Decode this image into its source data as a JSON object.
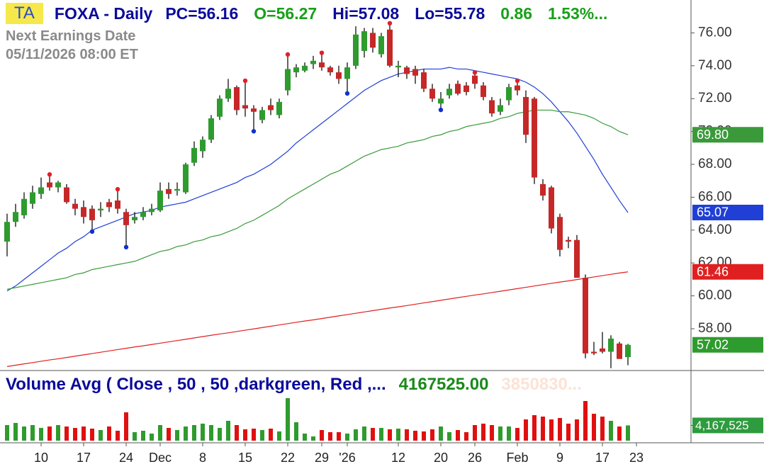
{
  "chart_data": {
    "type": "candlestick",
    "badge": "TA",
    "title": "FOXA - Daily",
    "header": [
      {
        "text": "PC=56.16",
        "color": "#0a0a9a"
      },
      {
        "text": "O=56.27",
        "color": "#18a018"
      },
      {
        "text": "Hi=57.08",
        "color": "#0a0a9a"
      },
      {
        "text": "Lo=55.78",
        "color": "#0a0a9a"
      },
      {
        "text": "0.86",
        "color": "#18a018"
      },
      {
        "text": "1.53%...",
        "color": "#18a018"
      }
    ],
    "notes": [
      "Next Earnings Date",
      "05/11/2026   08:00 ET"
    ],
    "categories": [
      null,
      null,
      null,
      null,
      "10",
      null,
      null,
      null,
      null,
      "17",
      null,
      null,
      null,
      null,
      "24",
      null,
      null,
      null,
      "Dec",
      null,
      null,
      null,
      null,
      "8",
      null,
      null,
      null,
      null,
      "15",
      null,
      null,
      null,
      null,
      "22",
      null,
      null,
      null,
      "29",
      null,
      null,
      "'26",
      null,
      null,
      null,
      null,
      null,
      "12",
      null,
      null,
      null,
      null,
      "20",
      null,
      null,
      null,
      "26",
      null,
      null,
      null,
      null,
      "Feb",
      null,
      null,
      null,
      null,
      "9",
      null,
      null,
      null,
      null,
      "17",
      null,
      null,
      null,
      "23"
    ],
    "open": [
      63.3,
      64.5,
      64.9,
      65.6,
      66.2,
      66.9,
      66.6,
      66.6,
      65.6,
      65.4,
      65.3,
      65.2,
      65.7,
      65.8,
      65.1,
      64.6,
      64.8,
      65.1,
      65.2,
      66.5,
      66.4,
      66.3,
      68.1,
      68.8,
      69.5,
      70.9,
      72.0,
      72.7,
      71.6,
      71.4,
      70.7,
      71.6,
      71.0,
      72.5,
      73.6,
      73.7,
      74.1,
      74.2,
      73.9,
      73.6,
      73.2,
      74.0,
      74.9,
      76.0,
      74.7,
      76.2,
      73.9,
      73.9,
      73.8,
      73.6,
      72.6,
      71.7,
      72.2,
      72.9,
      72.8,
      73.4,
      72.8,
      71.9,
      71.2,
      71.9,
      72.8,
      72.1,
      72.0,
      66.8,
      66.6,
      64.8,
      63.4,
      63.4,
      61.1,
      56.6,
      56.8,
      56.6,
      57.1,
      56.27,
      null
    ],
    "high": [
      65.0,
      65.6,
      66.3,
      66.7,
      67.2,
      67.3,
      67.0,
      66.8,
      65.9,
      65.8,
      65.5,
      65.7,
      65.9,
      66.4,
      65.3,
      65.1,
      65.4,
      65.6,
      66.9,
      66.9,
      66.9,
      68.1,
      69.4,
      69.7,
      71.0,
      72.2,
      73.2,
      72.8,
      73.0,
      71.6,
      71.5,
      72.0,
      72.0,
      74.6,
      74.1,
      74.2,
      74.6,
      74.7,
      74.0,
      74.0,
      74.2,
      76.4,
      76.3,
      76.3,
      76.0,
      76.5,
      74.3,
      74.0,
      74.0,
      73.8,
      72.9,
      72.4,
      72.9,
      73.1,
      73.0,
      73.5,
      73.0,
      72.1,
      72.0,
      72.9,
      73.0,
      72.5,
      72.1,
      67.1,
      66.7,
      65.0,
      63.6,
      63.7,
      61.3,
      57.2,
      57.8,
      57.6,
      57.2,
      57.08,
      null
    ],
    "low": [
      62.4,
      64.2,
      64.7,
      65.3,
      65.9,
      66.4,
      66.3,
      65.6,
      64.9,
      64.4,
      64.0,
      64.8,
      65.1,
      65.0,
      63.05,
      64.4,
      64.6,
      64.9,
      65.1,
      65.9,
      66.1,
      66.2,
      67.9,
      68.4,
      69.3,
      70.7,
      71.8,
      71.0,
      70.9,
      70.1,
      70.5,
      71.0,
      70.8,
      72.2,
      73.3,
      73.6,
      73.8,
      73.7,
      73.4,
      72.9,
      72.4,
      73.8,
      74.5,
      74.8,
      74.5,
      73.9,
      73.3,
      73.2,
      72.9,
      72.4,
      71.8,
      71.4,
      72.0,
      72.2,
      72.2,
      72.6,
      71.9,
      70.9,
      71.0,
      71.6,
      72.2,
      69.3,
      66.8,
      65.8,
      63.8,
      62.4,
      62.9,
      61.1,
      56.2,
      56.4,
      56.5,
      55.6,
      56.2,
      55.78,
      null
    ],
    "close": [
      64.5,
      65.1,
      65.9,
      66.3,
      66.6,
      66.6,
      66.9,
      65.7,
      65.3,
      64.8,
      64.6,
      65.3,
      65.4,
      65.3,
      64.3,
      64.8,
      65.1,
      65.3,
      66.4,
      66.2,
      66.5,
      68.0,
      69.0,
      69.5,
      70.8,
      72.0,
      72.6,
      71.3,
      71.4,
      71.2,
      71.3,
      71.3,
      71.8,
      73.8,
      73.9,
      74.0,
      74.3,
      73.9,
      73.6,
      73.2,
      73.9,
      75.9,
      76.1,
      75.1,
      75.8,
      74.0,
      74.0,
      73.5,
      73.4,
      72.6,
      72.0,
      72.0,
      72.6,
      72.3,
      72.4,
      72.9,
      72.1,
      71.1,
      71.6,
      72.7,
      72.5,
      69.8,
      67.2,
      66.1,
      64.1,
      62.8,
      63.3,
      61.1,
      56.5,
      56.5,
      56.6,
      57.4,
      56.16,
      57.02,
      null
    ],
    "close_label": "57.02",
    "up_color": "#2e9b2e",
    "down_color": "#c62828",
    "high_markers": [
      null,
      null,
      null,
      null,
      null,
      67.3,
      null,
      null,
      null,
      null,
      null,
      null,
      null,
      66.4,
      null,
      null,
      null,
      null,
      null,
      null,
      null,
      null,
      null,
      null,
      null,
      null,
      null,
      null,
      73.0,
      null,
      null,
      null,
      null,
      74.6,
      null,
      null,
      null,
      74.7,
      null,
      null,
      null,
      null,
      null,
      null,
      null,
      76.5,
      null,
      null,
      null,
      null,
      null,
      null,
      null,
      null,
      null,
      73.5,
      null,
      null,
      null,
      null,
      73.0,
      null,
      null,
      null,
      null,
      null,
      null,
      null,
      null,
      null,
      null,
      null,
      null,
      null,
      null
    ],
    "low_markers": [
      null,
      null,
      null,
      null,
      null,
      null,
      null,
      null,
      null,
      null,
      64.0,
      null,
      null,
      null,
      63.05,
      null,
      null,
      null,
      null,
      null,
      null,
      null,
      null,
      null,
      null,
      null,
      null,
      null,
      null,
      70.1,
      null,
      null,
      null,
      null,
      null,
      null,
      null,
      null,
      null,
      null,
      72.4,
      null,
      null,
      null,
      null,
      null,
      null,
      null,
      null,
      null,
      null,
      71.4,
      null,
      null,
      null,
      null,
      null,
      null,
      null,
      null,
      null,
      null,
      null,
      null,
      null,
      null,
      null,
      null,
      null,
      null,
      null,
      null,
      null,
      null,
      null
    ],
    "overlays": [
      {
        "color": "#1f3fd6",
        "last_label": "65.07",
        "values": [
          60.3,
          60.6,
          61.0,
          61.4,
          61.8,
          62.2,
          62.6,
          62.9,
          63.3,
          63.6,
          64.0,
          64.2,
          64.4,
          64.6,
          64.8,
          65.0,
          65.1,
          65.2,
          65.4,
          65.5,
          65.6,
          65.7,
          65.9,
          66.1,
          66.3,
          66.5,
          66.7,
          66.9,
          67.2,
          67.4,
          67.7,
          68.0,
          68.4,
          68.8,
          69.3,
          69.7,
          70.1,
          70.5,
          70.9,
          71.3,
          71.7,
          72.1,
          72.5,
          72.8,
          73.1,
          73.3,
          73.5,
          73.6,
          73.7,
          73.8,
          73.8,
          73.8,
          73.9,
          73.8,
          73.8,
          73.7,
          73.6,
          73.5,
          73.4,
          73.3,
          73.2,
          73.0,
          72.7,
          72.3,
          71.8,
          71.2,
          70.6,
          69.9,
          69.1,
          68.3,
          67.4,
          66.6,
          65.8,
          65.07,
          null
        ]
      },
      {
        "color": "#3a9a3a",
        "last_label": "69.80",
        "values": [
          60.4,
          60.5,
          60.6,
          60.7,
          60.8,
          60.9,
          61.0,
          61.1,
          61.3,
          61.4,
          61.6,
          61.7,
          61.8,
          61.9,
          62.0,
          62.1,
          62.3,
          62.5,
          62.7,
          62.8,
          63.0,
          63.1,
          63.3,
          63.4,
          63.6,
          63.7,
          63.9,
          64.1,
          64.4,
          64.6,
          64.9,
          65.2,
          65.5,
          65.9,
          66.2,
          66.5,
          66.8,
          67.1,
          67.4,
          67.6,
          67.9,
          68.2,
          68.5,
          68.7,
          68.9,
          69.0,
          69.1,
          69.3,
          69.4,
          69.5,
          69.7,
          69.8,
          70.0,
          70.1,
          70.3,
          70.4,
          70.5,
          70.6,
          70.8,
          70.9,
          71.1,
          71.2,
          71.3,
          71.3,
          71.3,
          71.2,
          71.2,
          71.1,
          71.0,
          70.8,
          70.5,
          70.3,
          70.0,
          69.8,
          null
        ]
      },
      {
        "color": "#e02020",
        "last_label": "61.46",
        "values": [
          55.7,
          55.78,
          55.86,
          55.94,
          56.02,
          56.1,
          56.17,
          56.25,
          56.33,
          56.41,
          56.49,
          56.57,
          56.65,
          56.73,
          56.81,
          56.89,
          56.96,
          57.04,
          57.12,
          57.2,
          57.28,
          57.36,
          57.44,
          57.52,
          57.6,
          57.68,
          57.75,
          57.83,
          57.91,
          57.99,
          58.07,
          58.15,
          58.23,
          58.31,
          58.39,
          58.47,
          58.54,
          58.62,
          58.7,
          58.78,
          58.86,
          58.94,
          59.02,
          59.1,
          59.18,
          59.26,
          59.33,
          59.41,
          59.49,
          59.57,
          59.65,
          59.73,
          59.81,
          59.89,
          59.97,
          60.05,
          60.12,
          60.2,
          60.28,
          60.36,
          60.44,
          60.52,
          60.6,
          60.68,
          60.76,
          60.84,
          60.91,
          60.99,
          61.07,
          61.15,
          61.23,
          61.31,
          61.39,
          61.46,
          null
        ]
      }
    ],
    "ylim": [
      55.5,
      78
    ],
    "yticks": [
      {
        "value": 58,
        "label": "58.00"
      },
      {
        "value": 60,
        "label": "60.00"
      },
      {
        "value": 62,
        "label": "62.00"
      },
      {
        "value": 64,
        "label": "64.00"
      },
      {
        "value": 66,
        "label": "66.00"
      },
      {
        "value": 68,
        "label": "68.00"
      },
      {
        "value": 70,
        "label": "70.00"
      },
      {
        "value": 72,
        "label": "72.00"
      },
      {
        "value": 74,
        "label": "74.00"
      },
      {
        "value": 76,
        "label": "76.00"
      }
    ],
    "volume": {
      "title": "Volume Avg ( Close , 50 , 50 ,darkgreen, Red ,...",
      "value_text": "4167525.00",
      "avg_text": "3850830...",
      "values": [
        4260000,
        4840000,
        3870000,
        4260000,
        3480000,
        3870000,
        4260000,
        3870000,
        3480000,
        3870000,
        3290000,
        2900000,
        3870000,
        2710000,
        7740000,
        2320000,
        2710000,
        1940000,
        4260000,
        3480000,
        2900000,
        3870000,
        4260000,
        4650000,
        4260000,
        3480000,
        5420000,
        4260000,
        3100000,
        3290000,
        2900000,
        3290000,
        2520000,
        11610000,
        5030000,
        1940000,
        1160000,
        2900000,
        2320000,
        2320000,
        1940000,
        3100000,
        3870000,
        3480000,
        3480000,
        3100000,
        3290000,
        3100000,
        2710000,
        2520000,
        3100000,
        3870000,
        2320000,
        2900000,
        2320000,
        4260000,
        4650000,
        4260000,
        3870000,
        3870000,
        3480000,
        5810000,
        6970000,
        6580000,
        5810000,
        6190000,
        4650000,
        5810000,
        10840000,
        7350000,
        6580000,
        5420000,
        3870000,
        4167525,
        null
      ],
      "ylim": [
        0,
        12000000
      ],
      "yticks": [
        {
          "value": 4167525,
          "label": "4,167,525"
        }
      ]
    }
  }
}
